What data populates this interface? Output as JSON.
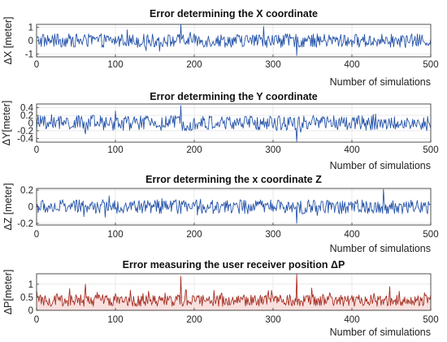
{
  "chart_data": [
    {
      "type": "line",
      "title": "Error determining the X coordinate",
      "xlabel": "Number of simulations",
      "ylabel": "ΔX [meter]",
      "xlim": [
        0,
        500
      ],
      "ylim": [
        -1.2,
        1.2
      ],
      "xticks": [
        0,
        100,
        200,
        300,
        400,
        500
      ],
      "yticks": [
        -1,
        0,
        1
      ],
      "grid": true,
      "color": "#1f4fa8",
      "amplitude": 0.5,
      "spikes": [
        {
          "x": 183,
          "y": 1.18
        },
        {
          "x": 330,
          "y": -1.1
        },
        {
          "x": 288,
          "y": 1.05
        }
      ],
      "x": [
        0,
        500
      ],
      "n_points": 500
    },
    {
      "type": "line",
      "title": "Error determining the Y coordinate",
      "xlabel": "Number of simulations",
      "ylabel": "ΔY[meter]",
      "xlim": [
        0,
        500
      ],
      "ylim": [
        -0.5,
        0.5
      ],
      "xticks": [
        0,
        100,
        200,
        300,
        400,
        500
      ],
      "yticks": [
        -0.4,
        -0.2,
        0,
        0.2,
        0.4
      ],
      "grid": true,
      "color": "#1f4fa8",
      "amplitude": 0.2,
      "spikes": [
        {
          "x": 183,
          "y": 0.46
        },
        {
          "x": 330,
          "y": -0.48
        }
      ],
      "n_points": 500
    },
    {
      "type": "line",
      "title": "Error determining the x coordinate Z",
      "xlabel": "Number of simulations",
      "ylabel": "ΔZ [meter]",
      "xlim": [
        0,
        500
      ],
      "ylim": [
        -0.22,
        0.22
      ],
      "xticks": [
        0,
        100,
        200,
        300,
        400,
        500
      ],
      "yticks": [
        -0.2,
        0,
        0.2
      ],
      "grid": true,
      "color": "#1f4fa8",
      "amplitude": 0.085,
      "spikes": [
        {
          "x": 330,
          "y": -0.2
        },
        {
          "x": 440,
          "y": 0.21
        }
      ],
      "n_points": 500
    },
    {
      "type": "line",
      "title": "Error measuring the user receiver position ΔP",
      "xlabel": "Number of simulations",
      "ylabel": "ΔP[meter]",
      "xlim": [
        0,
        500
      ],
      "ylim": [
        0,
        1.4
      ],
      "xticks": [
        0,
        100,
        200,
        300,
        400,
        500
      ],
      "yticks": [
        0,
        0.5,
        1
      ],
      "grid": true,
      "color": "#a4281c",
      "fill_color": "#f4c6c2",
      "amplitude": 0.45,
      "spikes": [
        {
          "x": 183,
          "y": 1.3
        },
        {
          "x": 330,
          "y": 1.38
        },
        {
          "x": 62,
          "y": 1.0
        }
      ],
      "n_points": 500
    }
  ]
}
